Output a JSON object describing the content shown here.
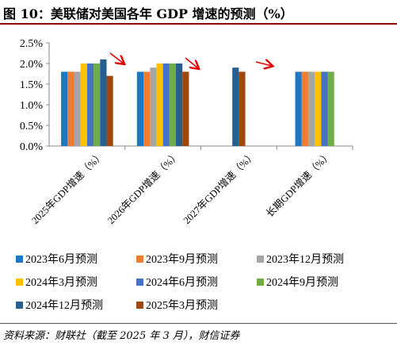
{
  "header": {
    "title": "图 10：美联储对美国各年 GDP 增速的预测（%）"
  },
  "footer": {
    "source": "资料来源：财联社（截至 2025 年 3 月），财信证券"
  },
  "chart_data": {
    "type": "bar",
    "title": "",
    "xlabel": "",
    "ylabel": "",
    "categories": [
      "2025年GDP增速（%）",
      "2026年GDP增速（%）",
      "2027年GDP增速（%）",
      "长期GDP增速（%）"
    ],
    "ylim": [
      0,
      2.5
    ],
    "yticks": [
      "0.0%",
      "0.5%",
      "1.0%",
      "1.5%",
      "2.0%",
      "2.5%"
    ],
    "grid": false,
    "legend_position": "bottom",
    "series": [
      {
        "name": "2023年6月预测",
        "color": "#1f77c4",
        "values": [
          1.8,
          1.8,
          null,
          1.8
        ]
      },
      {
        "name": "2023年9月预测",
        "color": "#ed7d31",
        "values": [
          1.8,
          1.8,
          null,
          1.8
        ]
      },
      {
        "name": "2023年12月预测",
        "color": "#a5a5a5",
        "values": [
          1.8,
          1.9,
          null,
          1.8
        ]
      },
      {
        "name": "2024年3月预测",
        "color": "#ffc000",
        "values": [
          2.0,
          2.0,
          null,
          1.8
        ]
      },
      {
        "name": "2024年6月预测",
        "color": "#4472c4",
        "values": [
          2.0,
          2.0,
          null,
          1.8
        ]
      },
      {
        "name": "2024年9月预测",
        "color": "#70ad47",
        "values": [
          2.0,
          2.0,
          null,
          1.8
        ]
      },
      {
        "name": "2024年12月预测",
        "color": "#255e91",
        "values": [
          2.1,
          2.0,
          1.9,
          null
        ]
      },
      {
        "name": "2025年3月预测",
        "color": "#9e480e",
        "values": [
          1.7,
          1.8,
          1.8,
          null
        ]
      }
    ],
    "annotations": [
      "red arrow",
      "red arrow",
      "red arrow"
    ]
  }
}
